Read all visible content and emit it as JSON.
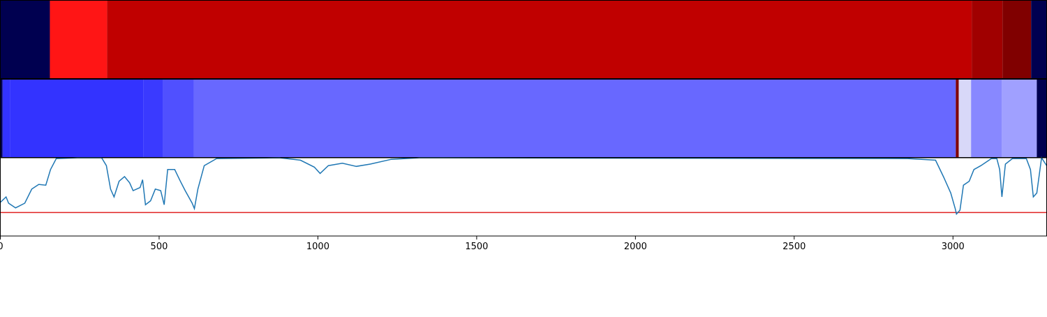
{
  "chart_data": [
    {
      "type": "segments",
      "xlim": [
        0,
        3295
      ],
      "edges": [
        0,
        156,
        336,
        3059,
        3156,
        3246,
        3295
      ],
      "colors": [
        "#000050",
        "#ff1515",
        "#c00000",
        "#a00000",
        "#800000",
        "#000050"
      ]
    },
    {
      "type": "segments",
      "xlim": [
        0,
        3295
      ],
      "edges": [
        0,
        7,
        31,
        451,
        512,
        609,
        3009,
        3018,
        3057,
        3154,
        3264,
        3295
      ],
      "colors": [
        "#000050",
        "#3333ff",
        "#3333ff",
        "#3a3aff",
        "#5050ff",
        "#6868ff",
        "#800000",
        "#d8d8f8",
        "#8888ff",
        "#a0a0ff",
        "#000050"
      ]
    },
    {
      "type": "line",
      "xlim": [
        0,
        3295
      ],
      "ylim": [
        0,
        1
      ],
      "color": "#1f77b4",
      "threshold": 0.3,
      "threshold_color": "#e02020",
      "xticks": [
        0,
        500,
        1000,
        1500,
        2000,
        2500,
        3000
      ],
      "x": [
        0,
        18,
        26,
        48,
        77,
        99,
        121,
        143,
        158,
        176,
        242,
        319,
        334,
        347,
        358,
        374,
        391,
        407,
        418,
        440,
        448,
        457,
        473,
        488,
        505,
        516,
        527,
        549,
        567,
        582,
        604,
        611,
        622,
        642,
        681,
        879,
        945,
        989,
        1007,
        1033,
        1077,
        1121,
        1165,
        1231,
        1319,
        2857,
        2945,
        2971,
        2993,
        3007,
        3011,
        3022,
        3033,
        3051,
        3066,
        3088,
        3121,
        3138,
        3147,
        3154,
        3165,
        3187,
        3231,
        3244,
        3253,
        3264,
        3279,
        3295
      ],
      "values": [
        0.43,
        0.5,
        0.42,
        0.36,
        0.42,
        0.6,
        0.66,
        0.65,
        0.85,
        0.99,
        1.0,
        1.0,
        0.9,
        0.6,
        0.5,
        0.7,
        0.76,
        0.68,
        0.58,
        0.62,
        0.72,
        0.4,
        0.45,
        0.6,
        0.58,
        0.4,
        0.85,
        0.85,
        0.7,
        0.58,
        0.42,
        0.35,
        0.6,
        0.9,
        0.99,
        1.0,
        0.97,
        0.88,
        0.8,
        0.9,
        0.93,
        0.89,
        0.92,
        0.98,
        1.0,
        0.99,
        0.97,
        0.75,
        0.55,
        0.35,
        0.28,
        0.33,
        0.65,
        0.7,
        0.85,
        0.9,
        0.99,
        0.99,
        0.85,
        0.5,
        0.92,
        0.99,
        0.99,
        0.85,
        0.5,
        0.55,
        1.0,
        0.9
      ]
    }
  ]
}
